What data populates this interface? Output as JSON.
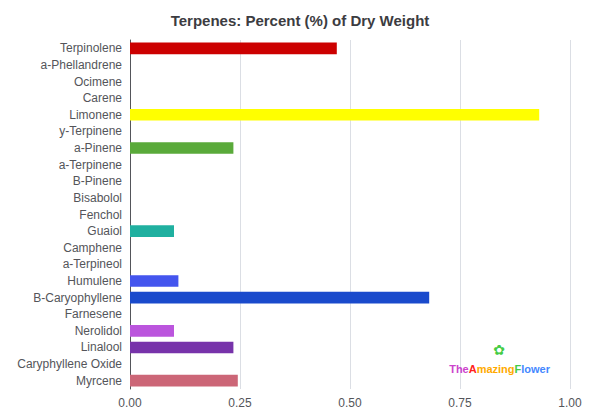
{
  "chart_data": {
    "type": "bar",
    "title": "Terpenes: Percent (%) of Dry Weight",
    "orientation": "horizontal",
    "categories": [
      "Terpinolene",
      "a-Phellandrene",
      "Ocimene",
      "Carene",
      "Limonene",
      "y-Terpinene",
      "a-Pinene",
      "a-Terpinene",
      "B-Pinene",
      "Bisabolol",
      "Fenchol",
      "Guaiol",
      "Camphene",
      "a-Terpineol",
      "Humulene",
      "B-Caryophyllene",
      "Farnesene",
      "Nerolidol",
      "Linalool",
      "Caryphyllene Oxide",
      "Myrcene"
    ],
    "values": [
      0.47,
      0.0,
      0.0,
      0.0,
      0.93,
      0.0,
      0.235,
      0.0,
      0.0,
      0.0,
      0.0,
      0.1,
      0.0,
      0.0,
      0.11,
      0.68,
      0.0,
      0.1,
      0.235,
      0.0,
      0.245
    ],
    "colors": [
      "#cc0000",
      "#111111",
      "#111111",
      "#111111",
      "#ffff00",
      "#111111",
      "#5aaa3a",
      "#111111",
      "#111111",
      "#111111",
      "#111111",
      "#20b0a0",
      "#111111",
      "#111111",
      "#4455ee",
      "#1a4acc",
      "#111111",
      "#bb55dd",
      "#7733aa",
      "#111111",
      "#cc6677"
    ],
    "xlim": [
      0.0,
      1.0
    ],
    "xticks": [
      {
        "value": 0.0,
        "label": "0.00"
      },
      0.25,
      {
        "value": 0.5,
        "label": "0.50"
      },
      0.75,
      {
        "value": 1.0,
        "label": "1.00"
      }
    ],
    "grid": true,
    "annotations": [
      {
        "text": "The",
        "color": "#cc44cc"
      },
      {
        "text": "A",
        "color": "#ff2222"
      },
      {
        "text": "mazing",
        "color": "#ffaa00"
      },
      {
        "text": "F",
        "color": "#44cc44"
      },
      {
        "text": "lower",
        "color": "#4488ff"
      },
      {
        "text": "✿",
        "color": "#44cc44"
      }
    ]
  }
}
